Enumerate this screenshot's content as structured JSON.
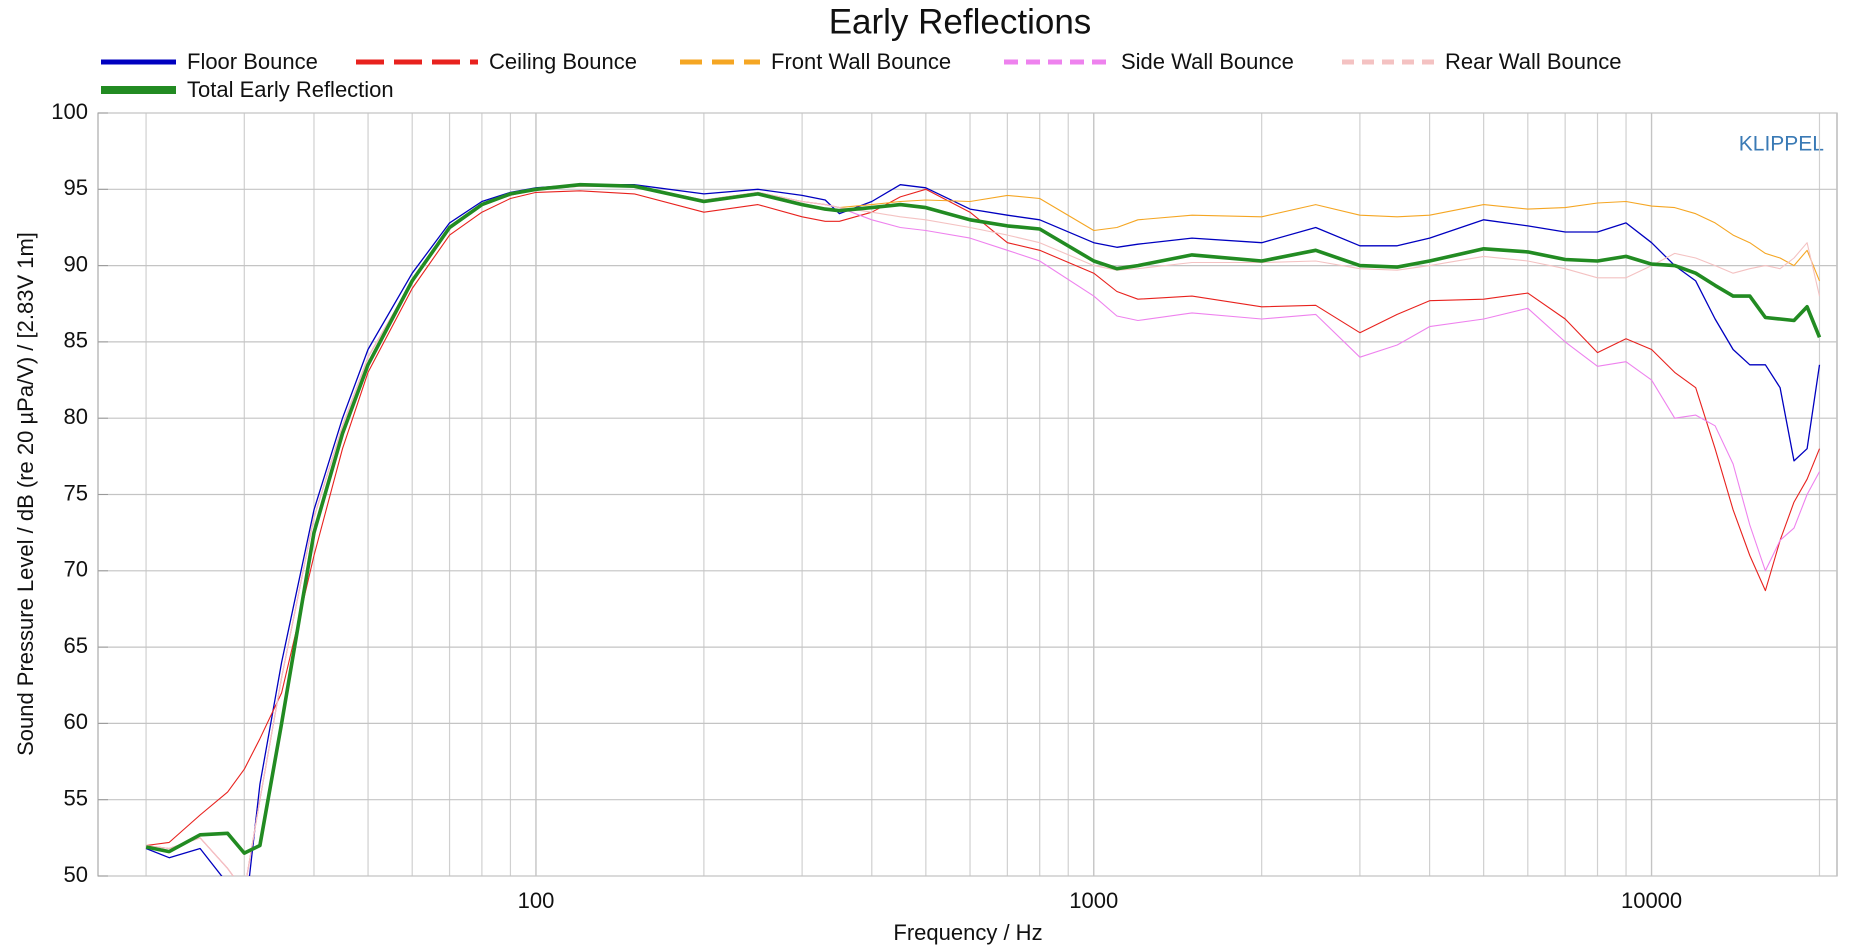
{
  "chart_data": {
    "type": "line",
    "title": "Early Reflections",
    "x_label": "Frequency / Hz",
    "y_label": "Sound Pressure Level / dB (re 20 µPa/V) / [2.83V 1m]",
    "annotation": "KLIPPEL",
    "log_x": true,
    "grid": true,
    "xlim": [
      16.4,
      21500
    ],
    "ylim": [
      50,
      100
    ],
    "xticks": [
      100,
      1000,
      10000
    ],
    "xminorticks": [
      20,
      30,
      40,
      50,
      60,
      70,
      80,
      90,
      200,
      300,
      400,
      500,
      600,
      700,
      800,
      900,
      2000,
      3000,
      4000,
      5000,
      6000,
      7000,
      8000,
      9000,
      20000
    ],
    "yticks": [
      50,
      55,
      60,
      65,
      70,
      75,
      80,
      85,
      90,
      95,
      100
    ],
    "x": [
      20,
      22,
      25,
      28,
      30,
      32,
      35,
      40,
      45,
      50,
      60,
      70,
      80,
      90,
      100,
      120,
      150,
      200,
      250,
      300,
      330,
      350,
      400,
      450,
      500,
      600,
      700,
      800,
      1000,
      1100,
      1200,
      1500,
      2000,
      2500,
      3000,
      3500,
      4000,
      5000,
      6000,
      7000,
      8000,
      9000,
      10000,
      11000,
      12000,
      13000,
      14000,
      15000,
      16000,
      17000,
      18000,
      19000,
      20000
    ],
    "series": [
      {
        "name": "Floor Bounce",
        "color": "#0000c0",
        "values": [
          51.8,
          51.2,
          51.8,
          49.5,
          47,
          56,
          64,
          74,
          80,
          84.5,
          89.5,
          92.8,
          94.2,
          94.8,
          95.1,
          95.3,
          95.3,
          94.7,
          95,
          94.6,
          94.3,
          93.4,
          94.2,
          95.3,
          95.1,
          93.7,
          93.3,
          93,
          91.5,
          91.2,
          91.4,
          91.8,
          91.5,
          92.5,
          91.3,
          91.3,
          91.8,
          93,
          92.6,
          92.2,
          92.2,
          92.8,
          91.5,
          90,
          89,
          86.5,
          84.5,
          83.5,
          83.5,
          82,
          77.2,
          78,
          83.5
        ]
      },
      {
        "name": "Ceiling Bounce",
        "color": "#e8221e",
        "values": [
          52,
          52.2,
          54,
          55.5,
          57,
          59,
          62,
          71,
          78,
          83,
          88.5,
          92,
          93.5,
          94.4,
          94.8,
          94.9,
          94.7,
          93.5,
          94,
          93.2,
          92.9,
          92.9,
          93.5,
          94.5,
          95,
          93.5,
          91.5,
          91,
          89.5,
          88.3,
          87.8,
          88,
          87.3,
          87.4,
          85.6,
          86.8,
          87.7,
          87.8,
          88.2,
          86.5,
          84.3,
          85.2,
          84.5,
          83,
          82,
          78,
          74,
          71,
          68.7,
          72,
          74.5,
          76,
          78
        ]
      },
      {
        "name": "Front Wall Bounce",
        "color": "#f5a623",
        "values": [
          52,
          51.8,
          52.5,
          50.5,
          49,
          55,
          63,
          73.5,
          79.5,
          84,
          89,
          92.5,
          94,
          94.6,
          95,
          95.2,
          95.2,
          94.3,
          94.8,
          94.2,
          94,
          93.8,
          94,
          94.2,
          94.3,
          94.2,
          94.6,
          94.4,
          92.3,
          92.5,
          93,
          93.3,
          93.2,
          94,
          93.3,
          93.2,
          93.3,
          94,
          93.7,
          93.8,
          94.1,
          94.2,
          93.9,
          93.8,
          93.4,
          92.8,
          92,
          91.5,
          90.8,
          90.5,
          90,
          91,
          89
        ]
      },
      {
        "name": "Side Wall Bounce",
        "color": "#ee82ee",
        "values": [
          52,
          51.8,
          52.5,
          50.5,
          49,
          55,
          63,
          73.5,
          79.5,
          84,
          89,
          92.5,
          94,
          94.6,
          95,
          95.2,
          95.2,
          94.3,
          94.8,
          94.2,
          94,
          93.8,
          93,
          92.5,
          92.3,
          91.8,
          91,
          90.3,
          88,
          86.7,
          86.4,
          86.9,
          86.5,
          86.8,
          84,
          84.8,
          86,
          86.5,
          87.2,
          85,
          83.4,
          83.7,
          82.5,
          80,
          80.2,
          79.5,
          77,
          73,
          70,
          72,
          72.8,
          75,
          76.5
        ]
      },
      {
        "name": "Rear Wall Bounce",
        "color": "#f4c2c2",
        "values": [
          52,
          51.8,
          52.5,
          50.5,
          49,
          55,
          63,
          73.5,
          79.5,
          84,
          89,
          92.5,
          94,
          94.6,
          95,
          95.2,
          95.2,
          94.3,
          94.8,
          94.2,
          94,
          93.8,
          93.5,
          93.2,
          93,
          92.5,
          92,
          91.5,
          90,
          89.7,
          89.8,
          90.2,
          90.2,
          90.3,
          89.8,
          89.7,
          90,
          90.6,
          90.3,
          89.8,
          89.2,
          89.2,
          90,
          90.8,
          90.5,
          90,
          89.5,
          89.8,
          90,
          89.8,
          90.5,
          91.5,
          88
        ]
      },
      {
        "name": "Total Early Reflection",
        "color": "#228b22",
        "values": [
          51.9,
          51.6,
          52.7,
          52.8,
          51.5,
          52,
          60,
          72.5,
          79,
          83.5,
          89,
          92.5,
          94,
          94.7,
          95,
          95.3,
          95.2,
          94.2,
          94.7,
          94,
          93.7,
          93.6,
          93.8,
          94,
          93.8,
          93,
          92.6,
          92.4,
          90.3,
          89.8,
          90,
          90.7,
          90.3,
          91,
          90,
          89.9,
          90.3,
          91.1,
          90.9,
          90.4,
          90.3,
          90.6,
          90.1,
          90,
          89.5,
          88.7,
          88,
          88,
          86.6,
          86.5,
          86.4,
          87.3,
          85.3
        ]
      }
    ]
  }
}
